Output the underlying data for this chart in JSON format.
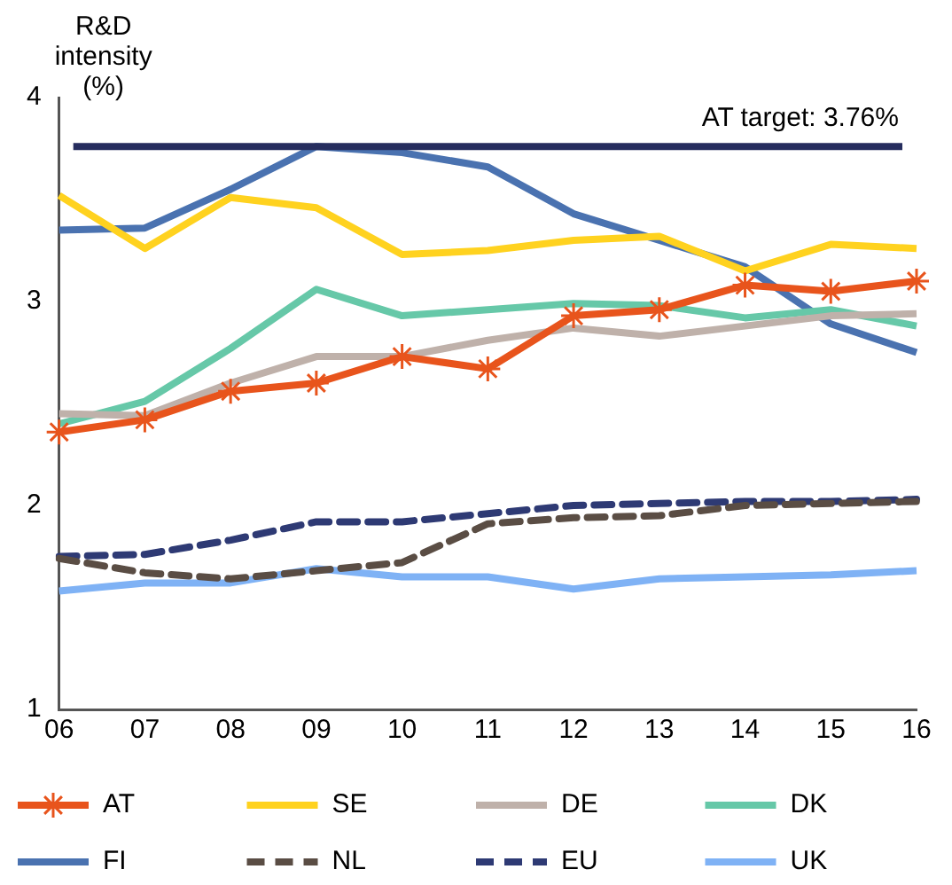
{
  "chart_data": {
    "type": "line",
    "ylabel": "R&D intensity (%)",
    "categories": [
      "06",
      "07",
      "08",
      "09",
      "10",
      "11",
      "12",
      "13",
      "14",
      "15",
      "16"
    ],
    "ylim": [
      1,
      4
    ],
    "yticks": [
      1,
      2,
      3,
      4
    ],
    "grid": false,
    "legend": "bottom",
    "marker": "none",
    "line_style": "solid",
    "ref_lines": [
      {
        "axis": "y",
        "value": 3.76,
        "label": "AT target: 3.76%",
        "color": "#262d5e"
      }
    ],
    "series": [
      {
        "name": "AT",
        "color": "#e8541c",
        "marker": "cross",
        "values": [
          2.36,
          2.42,
          2.56,
          2.6,
          2.73,
          2.67,
          2.93,
          2.96,
          3.08,
          3.05,
          3.1
        ]
      },
      {
        "name": "SE",
        "color": "#ffd21f",
        "values": [
          3.52,
          3.26,
          3.51,
          3.46,
          3.23,
          3.25,
          3.3,
          3.32,
          3.15,
          3.28,
          3.26
        ]
      },
      {
        "name": "DE",
        "color": "#bfb1aa",
        "values": [
          2.45,
          2.44,
          2.6,
          2.73,
          2.73,
          2.81,
          2.87,
          2.83,
          2.88,
          2.93,
          2.94
        ]
      },
      {
        "name": "DK",
        "color": "#66c8a8",
        "values": [
          2.4,
          2.51,
          2.77,
          3.06,
          2.93,
          2.96,
          2.99,
          2.98,
          2.92,
          2.96,
          2.88
        ]
      },
      {
        "name": "FI",
        "color": "#4a72b0",
        "values": [
          3.35,
          3.36,
          3.55,
          3.76,
          3.73,
          3.66,
          3.43,
          3.3,
          3.17,
          2.89,
          2.75
        ]
      },
      {
        "name": "NL",
        "color": "#5a4d44",
        "line_style": "dashed",
        "values": [
          1.74,
          1.67,
          1.64,
          1.68,
          1.72,
          1.91,
          1.94,
          1.95,
          2.0,
          2.01,
          2.02
        ]
      },
      {
        "name": "EU",
        "color": "#2e3a74",
        "line_style": "dashed",
        "values": [
          1.75,
          1.76,
          1.83,
          1.92,
          1.92,
          1.96,
          2.0,
          2.01,
          2.02,
          2.02,
          2.03
        ]
      },
      {
        "name": "UK",
        "color": "#7fb2f5",
        "values": [
          1.58,
          1.62,
          1.62,
          1.69,
          1.65,
          1.65,
          1.59,
          1.64,
          1.65,
          1.66,
          1.68
        ]
      }
    ]
  }
}
